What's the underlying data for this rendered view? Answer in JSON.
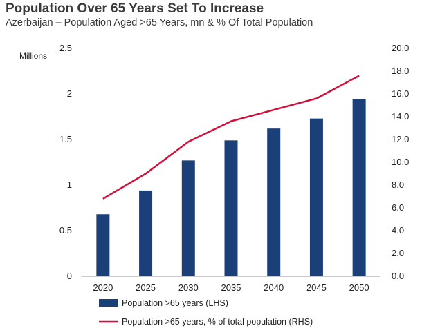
{
  "title": "Population Over 65 Years Set To Increase",
  "subtitle": "Azerbaijan – Population Aged >65 Years, mn & % Of Total Population",
  "colors": {
    "bar": "#1b3f78",
    "line": "#d0103a",
    "axis": "#999999"
  },
  "chart_data": {
    "type": "bar",
    "categories": [
      "2020",
      "2025",
      "2030",
      "2035",
      "2040",
      "2045",
      "2050"
    ],
    "ylabel": "Millions",
    "ylim": [
      0,
      2.5
    ],
    "y_ticks": [
      "0",
      "0.5",
      "1",
      "1.5",
      "2",
      "2.5"
    ],
    "y2lim": [
      0,
      20
    ],
    "y2_ticks": [
      "0.0",
      "2.0",
      "4.0",
      "6.0",
      "8.0",
      "10.0",
      "12.0",
      "14.0",
      "16.0",
      "18.0",
      "20.0"
    ],
    "series": [
      {
        "name": "Population >65 years (LHS)",
        "type": "bar",
        "axis": "left",
        "values": [
          0.68,
          0.94,
          1.27,
          1.49,
          1.62,
          1.73,
          1.94
        ]
      },
      {
        "name": "Population >65 years, % of total population (RHS)",
        "type": "line",
        "axis": "right",
        "values": [
          6.8,
          9.0,
          11.8,
          13.6,
          14.6,
          15.6,
          17.6
        ]
      }
    ],
    "legend": "bottom",
    "grid": false
  }
}
